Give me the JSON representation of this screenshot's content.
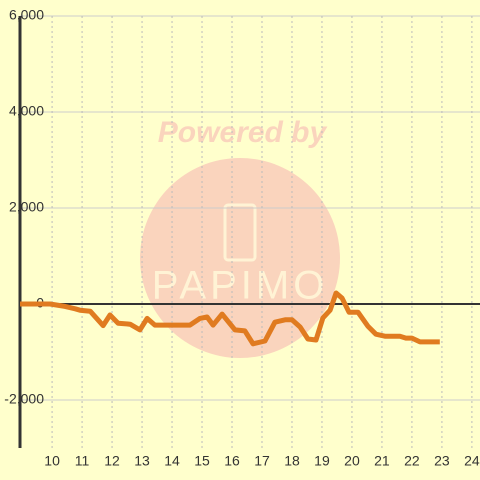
{
  "chart_data": {
    "type": "line",
    "x": [
      8.93,
      9.93,
      10.43,
      10.77,
      10.93,
      11.27,
      11.7,
      11.93,
      12.2,
      12.6,
      12.93,
      13.17,
      13.43,
      14.6,
      14.93,
      15.17,
      15.37,
      15.67,
      16.1,
      16.43,
      16.7,
      17.1,
      17.43,
      17.77,
      18.0,
      18.27,
      18.53,
      18.8,
      19.03,
      19.27,
      19.47,
      19.67,
      19.9,
      20.2,
      20.53,
      20.8,
      21.1,
      21.6,
      21.8,
      22.0,
      22.27,
      22.93
    ],
    "series": [
      {
        "color": "#e07b20",
        "values": [
          0,
          0,
          -50,
          -100,
          -130,
          -150,
          -450,
          -230,
          -400,
          -420,
          -540,
          -300,
          -440,
          -440,
          -300,
          -270,
          -440,
          -210,
          -540,
          -560,
          -830,
          -770,
          -380,
          -330,
          -330,
          -480,
          -730,
          -750,
          -290,
          -130,
          230,
          120,
          -170,
          -170,
          -460,
          -630,
          -670,
          -670,
          -710,
          -710,
          -790,
          -790
        ]
      }
    ],
    "xlim": [
      8.93,
      24.27
    ],
    "xticks": [
      10,
      11,
      12,
      13,
      14,
      15,
      16,
      17,
      18,
      19,
      20,
      21,
      22,
      23,
      24
    ],
    "ylim": [
      -3000,
      6000
    ],
    "yticks": [
      {
        "value": -2000,
        "label": "-2,000"
      },
      0,
      {
        "value": 2000,
        "label": "2,000"
      },
      {
        "value": 4000,
        "label": "4,000"
      },
      {
        "value": 6000,
        "label": "6,000"
      }
    ],
    "grid": true,
    "watermark": {
      "line1": "Powered by",
      "line2": "PAPIMO"
    }
  }
}
